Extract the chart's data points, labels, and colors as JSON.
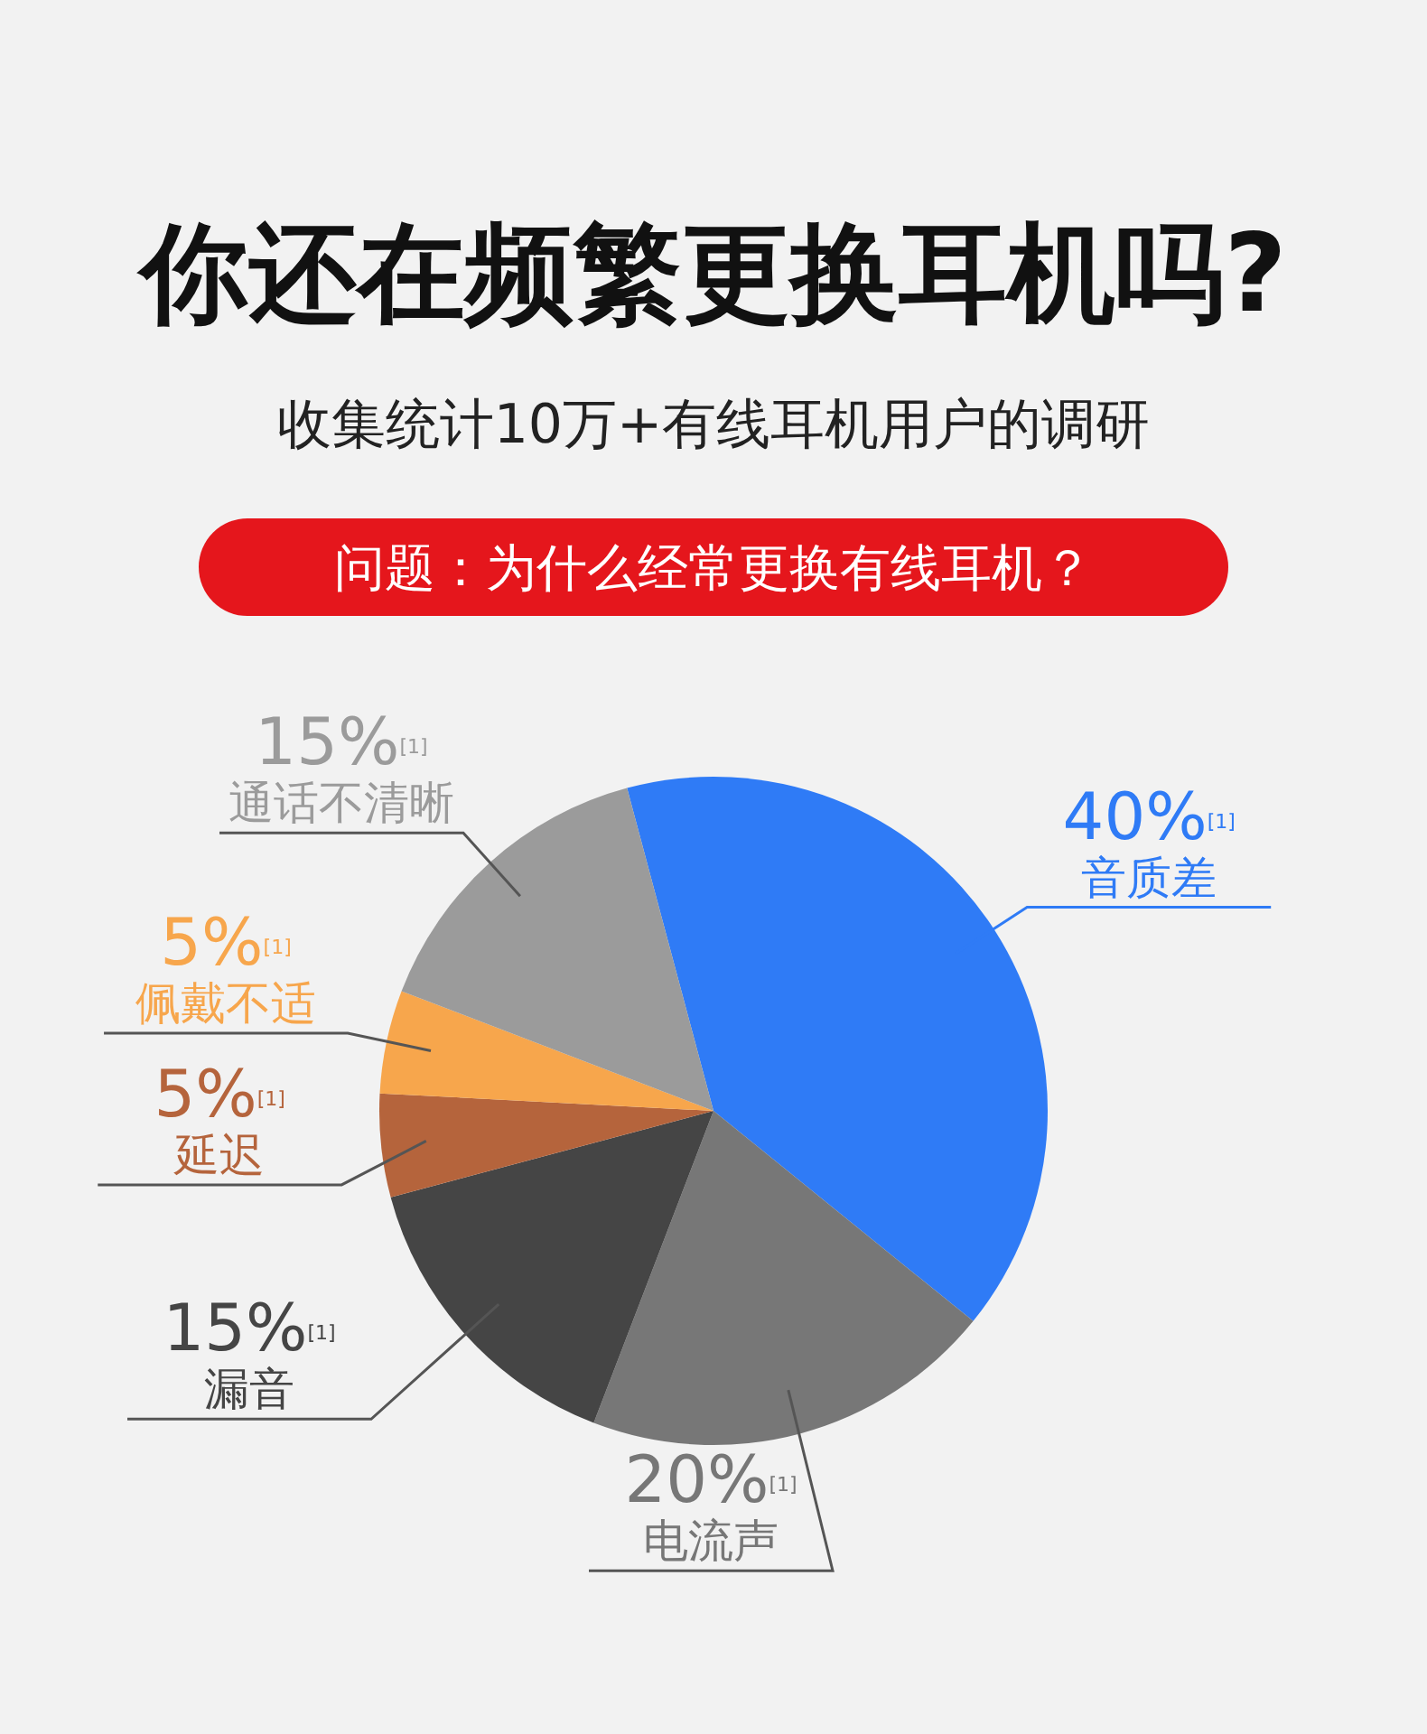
{
  "chart_data": {
    "type": "pie",
    "title": "你还在频繁更换耳机吗?",
    "subtitle": "收集统计10万+有线耳机用户的调研",
    "annotations": [
      "问题：为什么经常更换有线耳机？"
    ],
    "categories": [
      "音质差",
      "电流声",
      "漏音",
      "延迟",
      "佩戴不适",
      "通话不清晰"
    ],
    "values": [
      40,
      20,
      15,
      5,
      5,
      15
    ],
    "colors": [
      "#2f7bf6",
      "#777777",
      "#454545",
      "#b5643c",
      "#f7a64c",
      "#9b9b9b"
    ],
    "value_labels": [
      "40%$^{[1]}$",
      "20%$^{[1]}$",
      "15%$^{[1]}$",
      "5%$^{[1]}$",
      "5%$^{[1]}$",
      "15%$^{[1]}$"
    ]
  }
}
